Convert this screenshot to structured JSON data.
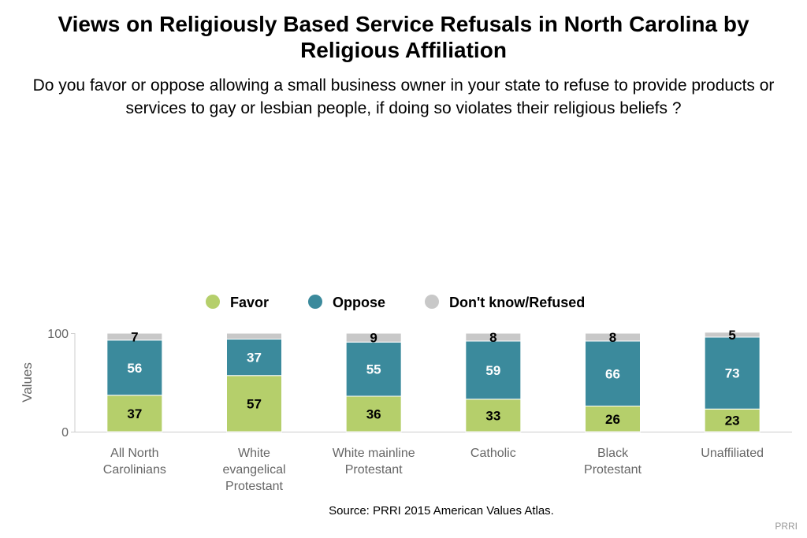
{
  "title": "Views on Religiously Based Service Refusals in North Carolina by Religious Affiliation",
  "subtitle": "Do you favor or oppose allowing a small business owner in your state to refuse to provide products or services to gay or lesbian people, if doing so violates their religious beliefs ?",
  "source": "Source: PRRI 2015 American Values Atlas.",
  "brand": "PRRI",
  "chart_data": {
    "type": "bar",
    "stacked": true,
    "ylabel": "Values",
    "xlabel": "",
    "ylim": [
      0,
      100
    ],
    "yticks": [
      0,
      100
    ],
    "legend_position": "top-center",
    "categories": [
      [
        "All North",
        "Carolinians"
      ],
      [
        "White",
        "evangelical",
        "Protestant"
      ],
      [
        "White mainline",
        "Protestant"
      ],
      [
        "Catholic"
      ],
      [
        "Black",
        "Protestant"
      ],
      [
        "Unaffiliated"
      ]
    ],
    "series": [
      {
        "name": "Favor",
        "color": "#b5cf6b",
        "label_color": "#000000",
        "values": [
          37,
          57,
          36,
          33,
          26,
          23
        ]
      },
      {
        "name": "Oppose",
        "color": "#3b8a9c",
        "label_color": "#ffffff",
        "values": [
          56,
          37,
          55,
          59,
          66,
          73
        ]
      },
      {
        "name": "Don't know/Refused",
        "color": "#c8c8c8",
        "label_color": "#000000",
        "values": [
          7,
          6,
          9,
          8,
          8,
          5
        ]
      }
    ],
    "shown_labels": [
      [
        true,
        true,
        true,
        true,
        true,
        true
      ],
      [
        true,
        true,
        true,
        true,
        true,
        true
      ],
      [
        true,
        false,
        true,
        true,
        true,
        true
      ]
    ]
  }
}
